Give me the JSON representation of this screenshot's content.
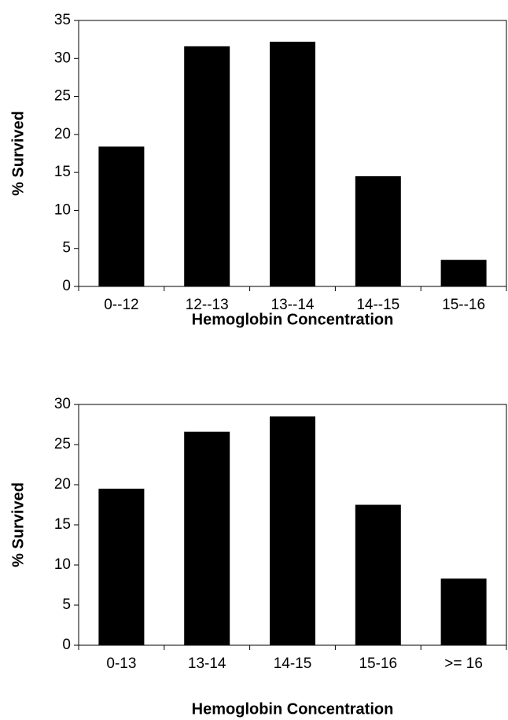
{
  "chart_data": [
    {
      "type": "bar",
      "y_label": "% Survived",
      "x_label": "Hemoglobin Concentration",
      "categories": [
        "0--12",
        "12--13",
        "13--14",
        "14--15",
        "15--16"
      ],
      "values": [
        18.4,
        31.6,
        32.2,
        14.5,
        3.5
      ],
      "color": "#000000",
      "ylim": [
        0,
        35
      ],
      "yticks": [
        0,
        5,
        10,
        15,
        20,
        25,
        30,
        35
      ]
    },
    {
      "type": "bar",
      "y_label": "% Survived",
      "x_label": "Hemoglobin Concentration",
      "categories": [
        "0-13",
        "13-14",
        "14-15",
        "15-16",
        ">= 16"
      ],
      "values": [
        19.5,
        26.6,
        28.5,
        17.5,
        8.3
      ],
      "color": "#000000",
      "ylim": [
        0,
        30
      ],
      "yticks": [
        0,
        5,
        10,
        15,
        20,
        25,
        30
      ]
    }
  ]
}
